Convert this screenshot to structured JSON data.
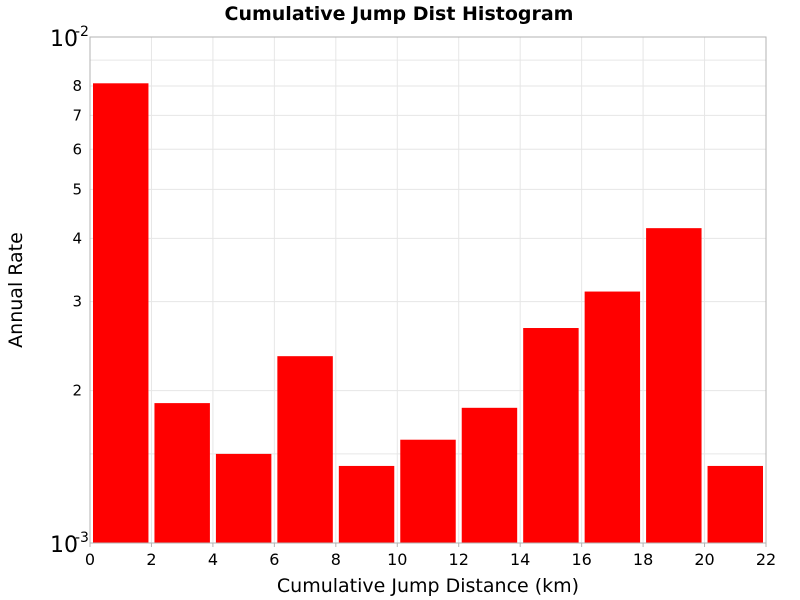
{
  "chart_data": {
    "type": "bar",
    "title": "Cumulative Jump Dist Histogram",
    "xlabel": "Cumulative Jump Distance (km)",
    "ylabel": "Annual Rate",
    "yscale": "log",
    "xlim": [
      0,
      22
    ],
    "ylim": [
      0.001,
      0.01
    ],
    "bar_width": 2,
    "grid": true,
    "bar_color": "#ff0000",
    "x_ticks": [
      "0",
      "2",
      "4",
      "6",
      "8",
      "10",
      "12",
      "14",
      "16",
      "18",
      "20",
      "22"
    ],
    "x_tick_values": [
      0,
      2,
      4,
      6,
      8,
      10,
      12,
      14,
      16,
      18,
      20,
      22
    ],
    "y_major_ticks": [
      {
        "value": 0.001,
        "base": "10",
        "exp": "-3"
      },
      {
        "value": 0.01,
        "base": "10",
        "exp": "-2"
      }
    ],
    "y_minor_ticks": [
      {
        "value": 0.002,
        "label": "2"
      },
      {
        "value": 0.003,
        "label": "3"
      },
      {
        "value": 0.004,
        "label": "4"
      },
      {
        "value": 0.005,
        "label": "5"
      },
      {
        "value": 0.006,
        "label": "6"
      },
      {
        "value": 0.007,
        "label": "7"
      },
      {
        "value": 0.008,
        "label": "8"
      }
    ],
    "bins": [
      {
        "center": 1,
        "value": 0.0081
      },
      {
        "center": 3,
        "value": 0.00189
      },
      {
        "center": 5,
        "value": 0.0015
      },
      {
        "center": 7,
        "value": 0.00234
      },
      {
        "center": 9,
        "value": 0.00142
      },
      {
        "center": 11,
        "value": 0.0016
      },
      {
        "center": 13,
        "value": 0.00185
      },
      {
        "center": 15,
        "value": 0.00266
      },
      {
        "center": 17,
        "value": 0.00314
      },
      {
        "center": 19,
        "value": 0.00419
      },
      {
        "center": 21,
        "value": 0.00142
      }
    ]
  }
}
